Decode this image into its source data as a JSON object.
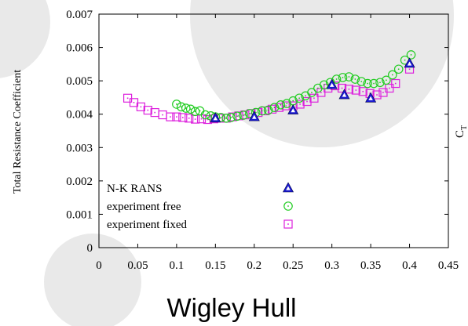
{
  "caption": "Wigley Hull",
  "side_label": {
    "main": "C",
    "sub": "T"
  },
  "colors": {
    "background_circle": "#e9e9e9",
    "nk_rans": "#1a1ad0",
    "experiment_free": "#22cc22",
    "experiment_fixed": "#dd22dd"
  },
  "chart_data": {
    "type": "scatter",
    "xlabel": "",
    "ylabel": "Total Resistance Coefficient",
    "xlim": [
      0,
      0.45
    ],
    "ylim": [
      0,
      0.007
    ],
    "x_ticks": [
      "0",
      "0.05",
      "0.1",
      "0.15",
      "0.2",
      "0.25",
      "0.3",
      "0.35",
      "0.4",
      "0.45"
    ],
    "y_ticks": [
      "0",
      "0.001",
      "0.002",
      "0.003",
      "0.004",
      "0.005",
      "0.006",
      "0.007"
    ],
    "grid": false,
    "legend_position": "bottom-left",
    "series": [
      {
        "name": "N-K RANS",
        "marker": "triangle",
        "color": "#1a1ad0",
        "points": [
          [
            0.15,
            0.00388
          ],
          [
            0.2,
            0.00392
          ],
          [
            0.25,
            0.00412
          ],
          [
            0.3,
            0.00488
          ],
          [
            0.316,
            0.00458
          ],
          [
            0.35,
            0.00448
          ],
          [
            0.4,
            0.00552
          ]
        ]
      },
      {
        "name": "experiment free",
        "marker": "circle",
        "color": "#22cc22",
        "points": [
          [
            0.1,
            0.0043
          ],
          [
            0.106,
            0.00422
          ],
          [
            0.112,
            0.00418
          ],
          [
            0.118,
            0.00415
          ],
          [
            0.124,
            0.00408
          ],
          [
            0.13,
            0.0041
          ],
          [
            0.137,
            0.00398
          ],
          [
            0.144,
            0.00395
          ],
          [
            0.15,
            0.00392
          ],
          [
            0.157,
            0.0039
          ],
          [
            0.164,
            0.00388
          ],
          [
            0.17,
            0.0039
          ],
          [
            0.178,
            0.00394
          ],
          [
            0.186,
            0.00397
          ],
          [
            0.194,
            0.00402
          ],
          [
            0.202,
            0.00405
          ],
          [
            0.21,
            0.0041
          ],
          [
            0.218,
            0.00412
          ],
          [
            0.226,
            0.0042
          ],
          [
            0.234,
            0.00428
          ],
          [
            0.242,
            0.00432
          ],
          [
            0.25,
            0.0044
          ],
          [
            0.258,
            0.00448
          ],
          [
            0.266,
            0.00455
          ],
          [
            0.274,
            0.00465
          ],
          [
            0.282,
            0.00478
          ],
          [
            0.29,
            0.00488
          ],
          [
            0.298,
            0.00495
          ],
          [
            0.306,
            0.00505
          ],
          [
            0.314,
            0.0051
          ],
          [
            0.322,
            0.00512
          ],
          [
            0.33,
            0.00505
          ],
          [
            0.338,
            0.00498
          ],
          [
            0.346,
            0.00492
          ],
          [
            0.354,
            0.00492
          ],
          [
            0.362,
            0.00495
          ],
          [
            0.37,
            0.00502
          ],
          [
            0.378,
            0.00518
          ],
          [
            0.386,
            0.00535
          ],
          [
            0.394,
            0.00562
          ],
          [
            0.402,
            0.00578
          ]
        ]
      },
      {
        "name": "experiment fixed",
        "marker": "square",
        "color": "#dd22dd",
        "points": [
          [
            0.037,
            0.00448
          ],
          [
            0.045,
            0.00435
          ],
          [
            0.054,
            0.00422
          ],
          [
            0.063,
            0.00412
          ],
          [
            0.072,
            0.00405
          ],
          [
            0.082,
            0.00398
          ],
          [
            0.092,
            0.00392
          ],
          [
            0.1,
            0.00392
          ],
          [
            0.108,
            0.0039
          ],
          [
            0.116,
            0.00388
          ],
          [
            0.124,
            0.00385
          ],
          [
            0.132,
            0.00386
          ],
          [
            0.14,
            0.00384
          ],
          [
            0.148,
            0.00386
          ],
          [
            0.156,
            0.00388
          ],
          [
            0.164,
            0.00388
          ],
          [
            0.172,
            0.00392
          ],
          [
            0.18,
            0.00395
          ],
          [
            0.188,
            0.00398
          ],
          [
            0.196,
            0.00402
          ],
          [
            0.205,
            0.00405
          ],
          [
            0.214,
            0.0041
          ],
          [
            0.223,
            0.00415
          ],
          [
            0.232,
            0.0042
          ],
          [
            0.241,
            0.00425
          ],
          [
            0.25,
            0.00425
          ],
          [
            0.259,
            0.0043
          ],
          [
            0.268,
            0.00438
          ],
          [
            0.277,
            0.00448
          ],
          [
            0.286,
            0.00465
          ],
          [
            0.295,
            0.00478
          ],
          [
            0.304,
            0.00485
          ],
          [
            0.313,
            0.00478
          ],
          [
            0.322,
            0.00475
          ],
          [
            0.331,
            0.00472
          ],
          [
            0.34,
            0.00468
          ],
          [
            0.349,
            0.00462
          ],
          [
            0.358,
            0.00458
          ],
          [
            0.366,
            0.00465
          ],
          [
            0.374,
            0.00478
          ],
          [
            0.382,
            0.00492
          ],
          [
            0.4,
            0.00535
          ]
        ]
      }
    ]
  }
}
